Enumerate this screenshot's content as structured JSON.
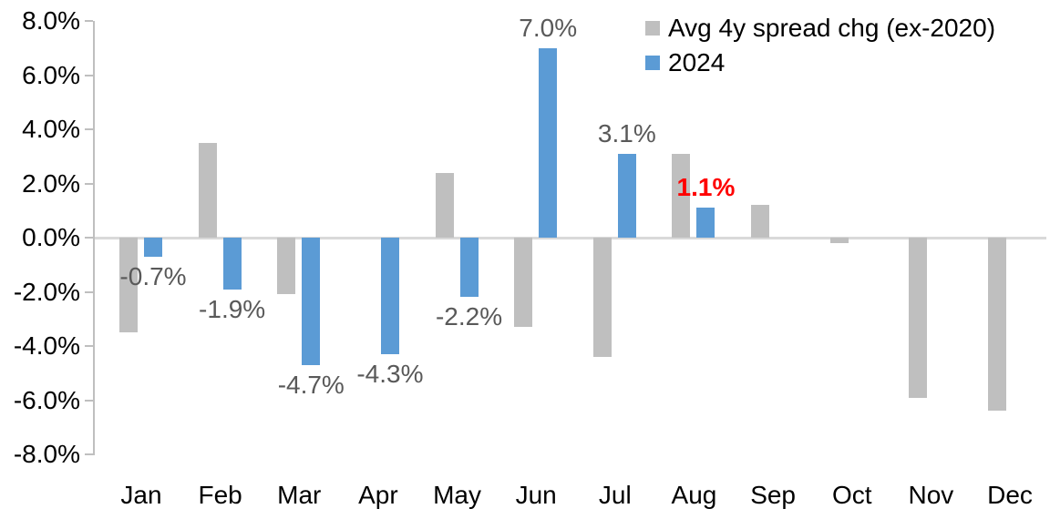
{
  "chart_data": {
    "type": "bar",
    "title": "",
    "xlabel": "",
    "ylabel": "",
    "categories": [
      "Jan",
      "Feb",
      "Mar",
      "Apr",
      "May",
      "Jun",
      "Jul",
      "Aug",
      "Sep",
      "Oct",
      "Nov",
      "Dec"
    ],
    "series": [
      {
        "name": "Avg 4y spread chg (ex-2020)",
        "color": "#bfbfbf",
        "values": [
          -3.5,
          3.5,
          -2.1,
          0.0,
          2.4,
          -3.3,
          -4.4,
          3.1,
          1.2,
          -0.2,
          -5.9,
          -6.4
        ]
      },
      {
        "name": "2024",
        "color": "#5b9bd5",
        "values": [
          -0.7,
          -1.9,
          -4.7,
          -4.3,
          -2.2,
          7.0,
          3.1,
          1.1,
          null,
          null,
          null,
          null
        ],
        "data_labels": [
          "-0.7%",
          "-1.9%",
          "-4.7%",
          "-4.3%",
          "-2.2%",
          "7.0%",
          "3.1%",
          "1.1%",
          null,
          null,
          null,
          null
        ],
        "data_label_colors": [
          "#595959",
          "#595959",
          "#595959",
          "#595959",
          "#595959",
          "#595959",
          "#595959",
          "#ff0000",
          null,
          null,
          null,
          null
        ],
        "data_label_bold": [
          false,
          false,
          false,
          false,
          false,
          false,
          false,
          true,
          null,
          null,
          null,
          null
        ]
      }
    ],
    "ylim": [
      -8,
      8
    ],
    "yticks": [
      {
        "value": 8,
        "label": "8.0%"
      },
      {
        "value": 6,
        "label": "6.0%"
      },
      {
        "value": 4,
        "label": "4.0%"
      },
      {
        "value": 2,
        "label": "2.0%"
      },
      {
        "value": 0,
        "label": "0.0%"
      },
      {
        "value": -2,
        "label": "-2.0%"
      },
      {
        "value": -4,
        "label": "-4.0%"
      },
      {
        "value": -6,
        "label": "-6.0%"
      },
      {
        "value": -8,
        "label": "-8.0%"
      }
    ],
    "grid": false,
    "legend_position": "top-right",
    "axis_color": "#bfbfbf",
    "zero_line_color": "#d9d9d9",
    "tick_label_color": "#000000",
    "default_data_label_color": "#595959",
    "highlight_data_label_color": "#ff0000"
  },
  "legend": {
    "items": [
      {
        "label": "Avg 4y spread chg (ex-2020)",
        "color": "#bfbfbf"
      },
      {
        "label": "2024",
        "color": "#5b9bd5"
      }
    ]
  }
}
